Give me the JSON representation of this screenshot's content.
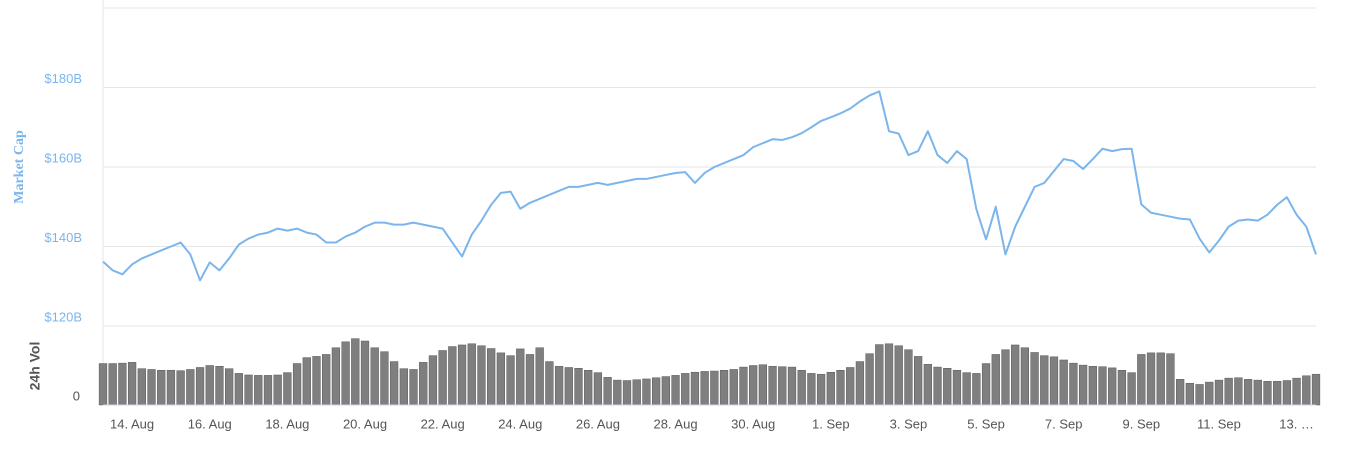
{
  "chart_data": [
    {
      "type": "line",
      "y_label": "Market Cap",
      "color": "#7cb5ec",
      "ylim": [
        120,
        200
      ],
      "yticks": [
        {
          "value": 120,
          "label": "$120B"
        },
        {
          "value": 140,
          "label": "$140B"
        },
        {
          "value": 160,
          "label": "$160B"
        },
        {
          "value": 180,
          "label": "$180B"
        }
      ],
      "grid": true,
      "categories": [
        null,
        null,
        null,
        "14. Aug",
        null,
        null,
        null,
        null,
        null,
        null,
        null,
        "16. Aug",
        null,
        null,
        null,
        null,
        null,
        null,
        null,
        "18. Aug",
        null,
        null,
        null,
        null,
        null,
        null,
        null,
        "20. Aug",
        null,
        null,
        null,
        null,
        null,
        null,
        null,
        "22. Aug",
        null,
        null,
        null,
        null,
        null,
        null,
        null,
        "24. Aug",
        null,
        null,
        null,
        null,
        null,
        null,
        null,
        "26. Aug",
        null,
        null,
        null,
        null,
        null,
        null,
        null,
        "28. Aug",
        null,
        null,
        null,
        null,
        null,
        null,
        null,
        "30. Aug",
        null,
        null,
        null,
        null,
        null,
        null,
        null,
        "1. Sep",
        null,
        null,
        null,
        null,
        null,
        null,
        null,
        "3. Sep",
        null,
        null,
        null,
        null,
        null,
        null,
        null,
        "5. Sep",
        null,
        null,
        null,
        null,
        null,
        null,
        null,
        "7. Sep",
        null,
        null,
        null,
        null,
        null,
        null,
        null,
        "9. Sep",
        null,
        null,
        null,
        null,
        null,
        null,
        null,
        "11. Sep",
        null,
        null,
        null,
        null,
        null,
        null,
        null,
        "13. …",
        null,
        null
      ],
      "values": [
        136.2,
        134,
        133,
        135.5,
        137,
        138,
        139,
        140,
        141,
        138,
        131.5,
        136,
        134,
        137,
        140.5,
        142,
        143,
        143.5,
        144.5,
        144,
        144.5,
        143.5,
        143,
        141,
        141,
        142.5,
        143.5,
        145,
        146,
        146,
        145.5,
        145.5,
        146,
        145.5,
        145,
        144.5,
        141,
        137.5,
        143,
        146.5,
        150.5,
        153.5,
        153.8,
        149.5,
        151,
        152,
        153,
        154,
        155,
        155,
        155.5,
        156,
        155.5,
        156,
        156.5,
        157,
        157,
        157.5,
        158,
        158.5,
        158.7,
        156,
        158.5,
        160,
        161,
        162,
        163,
        165,
        166,
        167,
        166.8,
        167.5,
        168.5,
        170,
        171.6,
        172.5,
        173.5,
        174.7,
        176.5,
        178,
        179,
        169,
        168.4,
        163,
        164,
        169,
        163,
        161,
        164,
        162,
        149.4,
        141.8,
        150,
        138,
        145,
        150,
        155,
        156,
        159,
        162,
        161.5,
        159.5,
        162,
        164.6,
        164,
        164.5,
        164.6,
        150.6,
        148.5,
        148,
        147.5,
        147,
        146.8,
        142,
        138.5,
        141.5,
        145,
        146.5,
        146.8,
        146.5,
        148,
        150.5,
        152.4,
        148,
        145,
        138
      ]
    },
    {
      "type": "bar",
      "y_label": "24h Vol",
      "color": "#7f7f7f",
      "ylim": [
        0,
        20
      ],
      "yticks": [
        0
      ],
      "values": [
        10.5,
        10.5,
        10.6,
        10.8,
        9.2,
        9.0,
        8.8,
        8.8,
        8.7,
        9.0,
        9.5,
        10,
        9.8,
        9.2,
        8,
        7.6,
        7.5,
        7.5,
        7.6,
        8.2,
        10.5,
        12,
        12.3,
        12.8,
        14.5,
        16,
        16.8,
        16.2,
        14.5,
        13.5,
        11,
        9.2,
        9,
        10.8,
        12.5,
        13.8,
        14.8,
        15.2,
        15.5,
        15,
        14.3,
        13.2,
        12.5,
        14.2,
        12.8,
        14.5,
        11,
        9.8,
        9.5,
        9.3,
        8.8,
        8.2,
        7,
        6.3,
        6.2,
        6.4,
        6.6,
        6.9,
        7.2,
        7.5,
        8,
        8.3,
        8.5,
        8.6,
        8.8,
        9,
        9.6,
        10,
        10.2,
        9.8,
        9.7,
        9.6,
        8.8,
        8,
        7.8,
        8.3,
        8.8,
        9.5,
        11,
        13,
        15.3,
        15.5,
        15,
        14,
        12.3,
        10.3,
        9.6,
        9.3,
        8.8,
        8.2,
        8,
        10.5,
        12.8,
        14,
        15.2,
        14.5,
        13.3,
        12.5,
        12.2,
        11.4,
        10.6,
        10.1,
        9.8,
        9.7,
        9.4,
        8.8,
        8.2,
        12.8,
        13.2,
        13.2,
        13,
        6.5,
        5.5,
        5.2,
        5.8,
        6.3,
        6.8,
        6.9,
        6.5,
        6.3,
        6,
        6,
        6.2,
        6.8,
        7.4,
        7.8
      ]
    }
  ]
}
